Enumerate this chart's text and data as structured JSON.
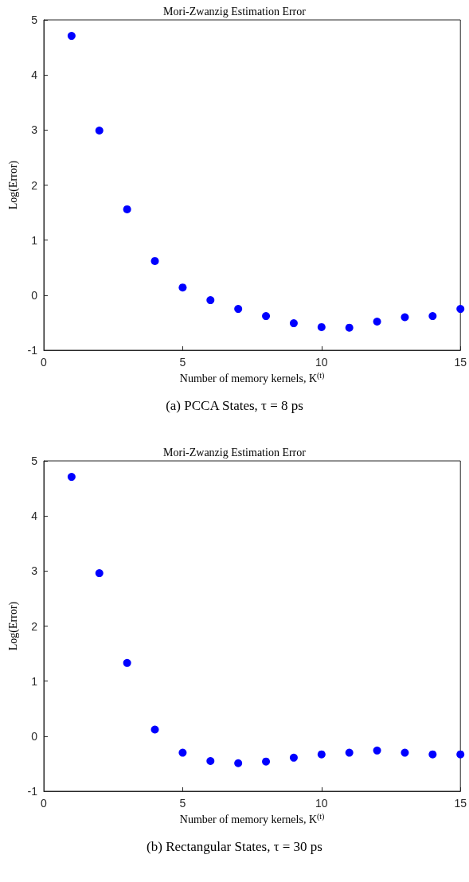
{
  "chart_data": [
    {
      "type": "scatter",
      "title": "Mori-Zwanzig Estimation Error",
      "xlabel": "Number of memory kernels, K$^{(t)}$",
      "ylabel": "Log(Error)",
      "annotations": [
        "(a) PCCA States, τ = 8 ps"
      ],
      "x": [
        1,
        2,
        3,
        4,
        5,
        6,
        7,
        8,
        9,
        10,
        11,
        12,
        13,
        14,
        15
      ],
      "series": [
        {
          "color": "#0000ff",
          "values": [
            4.71,
            2.99,
            1.56,
            0.62,
            0.14,
            -0.09,
            -0.25,
            -0.38,
            -0.51,
            -0.58,
            -0.59,
            -0.48,
            -0.4,
            -0.38,
            -0.25
          ]
        }
      ],
      "xlim": [
        0,
        15
      ],
      "xticks": [
        0,
        5,
        10,
        15
      ],
      "ylim": [
        -1,
        5
      ],
      "yticks": [
        -1,
        0,
        1,
        2,
        3,
        4,
        5
      ],
      "marker": "circle",
      "grid": false
    },
    {
      "type": "scatter",
      "title": "Mori-Zwanzig Estimation Error",
      "xlabel": "Number of memory kernels, K$^{(t)}$",
      "ylabel": "Log(Error)",
      "annotations": [
        "(b) Rectangular States, τ = 30 ps"
      ],
      "x": [
        1,
        2,
        3,
        4,
        5,
        6,
        7,
        8,
        9,
        10,
        11,
        12,
        13,
        14,
        15
      ],
      "series": [
        {
          "color": "#0000ff",
          "values": [
            4.71,
            2.96,
            1.33,
            0.12,
            -0.3,
            -0.45,
            -0.49,
            -0.46,
            -0.39,
            -0.33,
            -0.3,
            -0.26,
            -0.3,
            -0.33,
            -0.33
          ]
        }
      ],
      "xlim": [
        0,
        15
      ],
      "xticks": [
        0,
        5,
        10,
        15
      ],
      "ylim": [
        -1,
        5
      ],
      "yticks": [
        -1,
        0,
        1,
        2,
        3,
        4,
        5
      ],
      "marker": "circle",
      "grid": false
    }
  ]
}
